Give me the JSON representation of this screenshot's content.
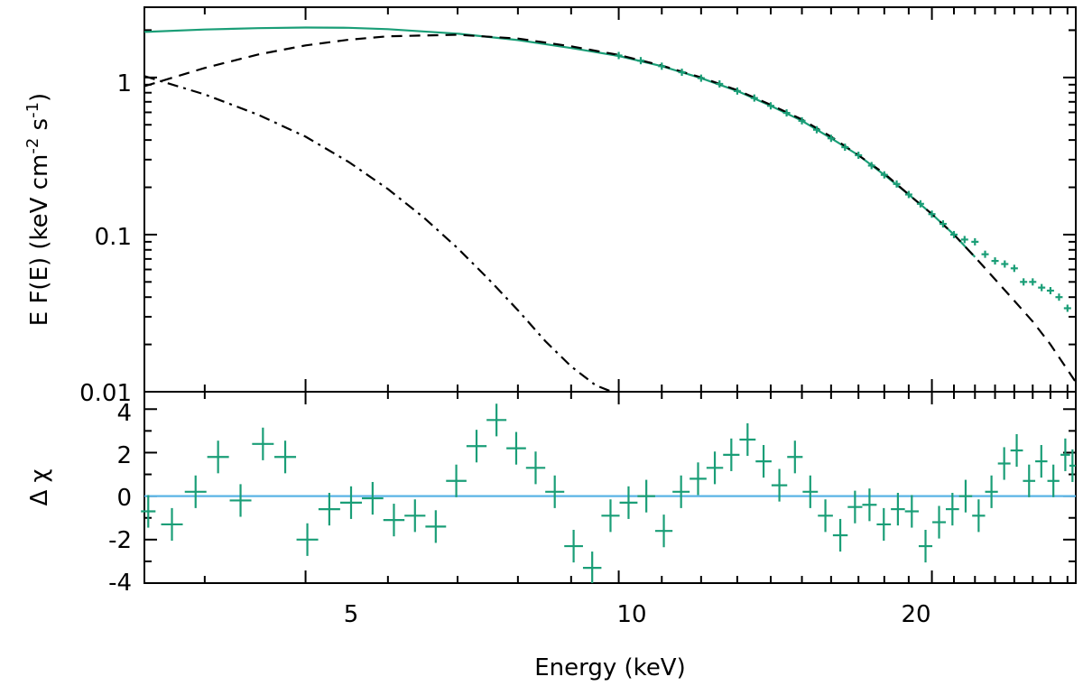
{
  "chart_data": [
    {
      "type": "line",
      "panel": "spectrum",
      "ylabel": "E F(E) (keV cm",
      "ylabel_sup1": "-2",
      "ylabel_mid": " s",
      "ylabel_sup2": "-1",
      "ylabel_end": ")",
      "x_scale": "log",
      "y_scale": "log",
      "xlim": [
        3.5,
        27.5
      ],
      "ylim": [
        0.01,
        2.8
      ],
      "y_ticks": [
        1,
        0.1,
        0.01
      ],
      "y_tick_labels": [
        "1",
        "0.1",
        "0.01"
      ],
      "colors": {
        "data": "#1a9e77",
        "model": "#000000",
        "total": "#1a9e77"
      },
      "series": [
        {
          "style": "solid",
          "x": [
            3.5,
            4.0,
            4.5,
            5.0,
            5.5,
            6.0,
            7.0,
            8.0,
            9.0,
            10.0,
            11.0,
            12.0,
            13.0,
            14.0,
            15.0,
            16.0,
            17.0,
            18.0,
            19.0,
            20.0,
            21.0,
            22.0
          ],
          "values": [
            1.95,
            2.02,
            2.06,
            2.08,
            2.07,
            2.03,
            1.9,
            1.73,
            1.54,
            1.37,
            1.18,
            0.99,
            0.82,
            0.66,
            0.53,
            0.41,
            0.32,
            0.24,
            0.18,
            0.135,
            0.1,
            0.072
          ]
        },
        {
          "style": "dashed",
          "x": [
            3.5,
            4.0,
            4.5,
            5.0,
            5.5,
            6.0,
            7.0,
            8.0,
            9.0,
            10.0,
            11.0,
            12.0,
            13.0,
            14.0,
            15.0,
            16.0,
            17.0,
            18.0,
            19.0,
            20.0,
            21.0,
            22.0,
            23.0,
            24.0,
            25.0,
            26.0,
            27.5
          ],
          "values": [
            0.88,
            1.15,
            1.4,
            1.6,
            1.74,
            1.83,
            1.87,
            1.77,
            1.58,
            1.39,
            1.19,
            1.0,
            0.83,
            0.67,
            0.54,
            0.42,
            0.32,
            0.245,
            0.18,
            0.135,
            0.1,
            0.072,
            0.052,
            0.038,
            0.028,
            0.02,
            0.0115
          ]
        },
        {
          "style": "dash-dot",
          "x": [
            3.5,
            4.0,
            4.5,
            5.0,
            5.5,
            6.0,
            6.5,
            7.0,
            7.5,
            8.0,
            8.5,
            9.0,
            9.5,
            9.85
          ],
          "values": [
            1.02,
            0.78,
            0.58,
            0.42,
            0.29,
            0.195,
            0.128,
            0.082,
            0.052,
            0.033,
            0.021,
            0.0145,
            0.011,
            0.01
          ]
        }
      ],
      "points": {
        "x": [
          10.0,
          10.5,
          11.0,
          11.5,
          12.0,
          12.5,
          13.0,
          13.5,
          14.0,
          14.5,
          15.0,
          15.5,
          16.0,
          16.5,
          17.0,
          17.5,
          18.0,
          18.5,
          19.0,
          19.5,
          20.0,
          20.5,
          21.0,
          21.5,
          22.0,
          22.5,
          23.0,
          23.5,
          24.0,
          24.5,
          25.0,
          25.5,
          26.0,
          26.5,
          27.0
        ],
        "y": [
          1.38,
          1.28,
          1.18,
          1.08,
          0.99,
          0.91,
          0.82,
          0.74,
          0.66,
          0.595,
          0.53,
          0.465,
          0.41,
          0.36,
          0.32,
          0.275,
          0.24,
          0.21,
          0.18,
          0.157,
          0.135,
          0.117,
          0.1,
          0.093,
          0.09,
          0.075,
          0.068,
          0.065,
          0.061,
          0.05,
          0.05,
          0.046,
          0.044,
          0.04,
          0.034
        ]
      }
    },
    {
      "type": "scatter",
      "panel": "residuals",
      "ylabel": "Δ χ",
      "xlabel": "Energy (keV)",
      "x_scale": "log",
      "xlim": [
        3.5,
        27.5
      ],
      "ylim": [
        -4,
        4.8
      ],
      "x_ticks": [
        5,
        10,
        20
      ],
      "x_tick_labels": [
        "5",
        "10",
        "20"
      ],
      "y_ticks": [
        4,
        2,
        0,
        -2,
        -4
      ],
      "y_tick_labels": [
        "4",
        "2",
        "0",
        "-2",
        "-4"
      ],
      "zero_line_color": "#5ab4e6",
      "points": {
        "x": [
          3.53,
          3.72,
          3.92,
          4.12,
          4.33,
          4.55,
          4.78,
          5.02,
          5.27,
          5.53,
          5.8,
          6.08,
          6.37,
          6.67,
          6.98,
          7.3,
          7.63,
          7.97,
          8.32,
          8.68,
          9.05,
          9.43,
          9.82,
          10.22,
          10.63,
          11.05,
          11.48,
          11.92,
          12.37,
          12.83,
          13.3,
          13.78,
          14.27,
          14.77,
          15.28,
          15.8,
          16.33,
          16.87,
          17.42,
          17.98,
          18.55,
          19.13,
          19.72,
          20.32,
          20.93,
          21.55,
          22.18,
          22.82,
          23.47,
          24.13,
          24.8,
          25.48,
          26.17,
          26.87,
          27.3
        ],
        "y": [
          -0.7,
          -1.3,
          0.2,
          1.8,
          -0.2,
          2.4,
          1.8,
          -2.0,
          -0.6,
          -0.3,
          -0.1,
          -1.1,
          -0.9,
          -1.4,
          0.7,
          2.3,
          3.5,
          2.2,
          1.3,
          0.2,
          -2.3,
          -3.3,
          -0.9,
          -0.3,
          0.0,
          -1.6,
          0.2,
          0.8,
          1.3,
          1.9,
          2.6,
          1.6,
          0.5,
          1.8,
          0.2,
          -0.9,
          -1.8,
          -0.5,
          -0.4,
          -1.3,
          -0.6,
          -0.7,
          -2.3,
          -1.2,
          -0.6,
          0.0,
          -0.9,
          0.2,
          1.5,
          2.1,
          0.7,
          1.6,
          0.7,
          1.9,
          1.4
        ],
        "err": [
          0.75,
          0.75,
          0.75,
          0.75,
          0.75,
          0.75,
          0.75,
          0.75,
          0.75,
          0.75,
          0.75,
          0.75,
          0.75,
          0.75,
          0.75,
          0.75,
          0.75,
          0.75,
          0.75,
          0.75,
          0.75,
          0.75,
          0.75,
          0.75,
          0.75,
          0.75,
          0.75,
          0.75,
          0.75,
          0.75,
          0.75,
          0.75,
          0.75,
          0.75,
          0.75,
          0.75,
          0.75,
          0.75,
          0.75,
          0.75,
          0.75,
          0.75,
          0.75,
          0.75,
          0.75,
          0.75,
          0.75,
          0.75,
          0.75,
          0.75,
          0.75,
          0.75,
          0.75,
          0.75,
          0.75
        ]
      }
    }
  ]
}
